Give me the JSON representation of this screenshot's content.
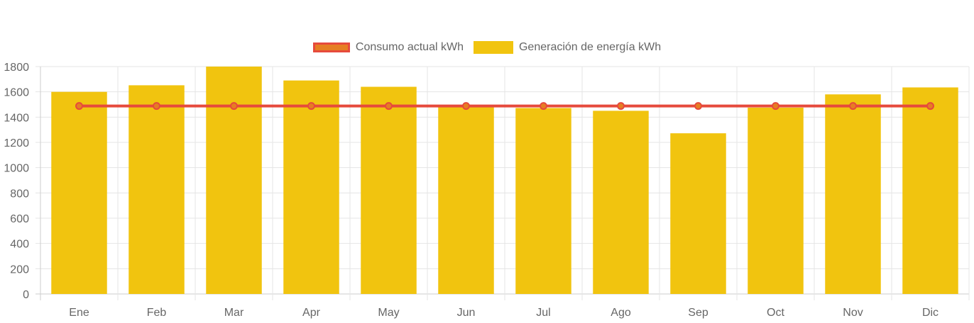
{
  "chart_data": {
    "type": "bar",
    "categories": [
      "Ene",
      "Feb",
      "Mar",
      "Apr",
      "May",
      "Jun",
      "Jul",
      "Ago",
      "Sep",
      "Oct",
      "Nov",
      "Dic"
    ],
    "series": [
      {
        "name": "Consumo actual kWh",
        "type": "line",
        "values": [
          1488,
          1488,
          1488,
          1488,
          1488,
          1488,
          1488,
          1488,
          1488,
          1488,
          1488,
          1488
        ],
        "color": "#e64a3c",
        "point_color": "#e67e22"
      },
      {
        "name": "Generación de energía kWh",
        "type": "bar",
        "values": [
          1600,
          1652,
          1800,
          1690,
          1640,
          1490,
          1472,
          1450,
          1272,
          1475,
          1580,
          1635
        ],
        "color": "#f1c40f"
      }
    ],
    "ylim": [
      0,
      1800
    ],
    "yticks": [
      0,
      200,
      400,
      600,
      800,
      1000,
      1200,
      1400,
      1600,
      1800
    ],
    "grid": true,
    "legend_position": "top-center"
  }
}
